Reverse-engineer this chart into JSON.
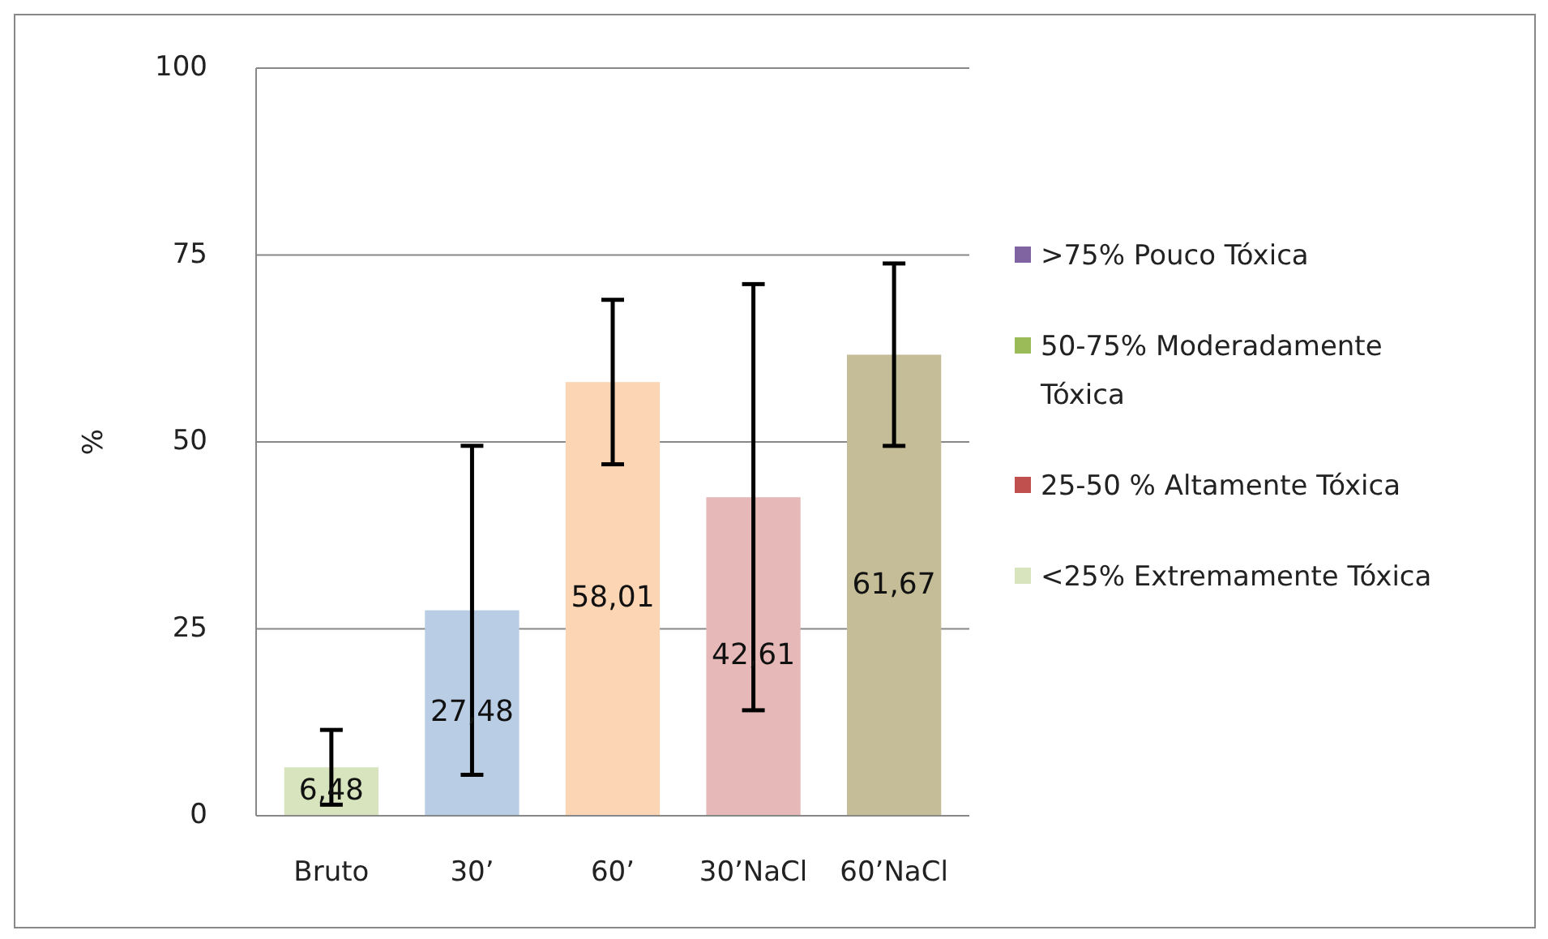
{
  "chart_data": {
    "type": "bar",
    "ylabel": "%",
    "categories": [
      "Bruto",
      "30’",
      "60’",
      "30’NaCl",
      "60’NaCl"
    ],
    "series": [
      {
        "colors": [
          "#d7e4bd",
          "#b9cde5",
          "#fcd5b5",
          "#e6b9b8",
          "#c4bd97"
        ],
        "values": [
          6.48,
          27.48,
          58.01,
          42.61,
          61.67
        ],
        "errors": [
          5,
          22,
          11,
          28.5,
          12.2
        ],
        "value_labels": [
          "6,48",
          "27,48",
          "58,01",
          "42,61",
          "61,67"
        ]
      },
      {
        "name": ">75% Pouco Tóxica",
        "color": "#8064a2",
        "values": [
          null,
          null,
          null,
          null,
          null
        ]
      },
      {
        "name": "50-75% Moderadamente Tóxica",
        "color": "#9bbb59",
        "values": [
          null,
          null,
          null,
          null,
          null
        ]
      },
      {
        "name": "25-50 % Altamente Tóxica",
        "color": "#c0504d",
        "values": [
          null,
          null,
          null,
          null,
          null
        ]
      },
      {
        "name": "<25% Extremamente Tóxica",
        "color": "#d7e4bd",
        "values": [
          null,
          null,
          null,
          null,
          null
        ]
      }
    ],
    "ylim": [
      0,
      100
    ],
    "yticks": [
      0,
      25,
      50,
      75,
      100
    ],
    "grid": "y",
    "legend": "right"
  }
}
